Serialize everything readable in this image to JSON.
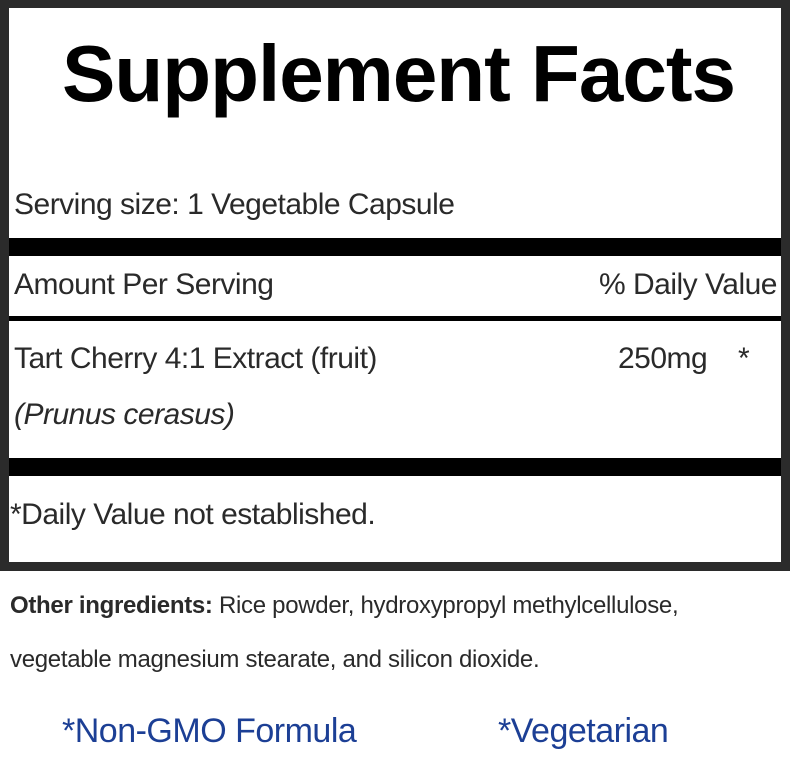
{
  "title": "Supplement Facts",
  "serving_size": "Serving size:  1 Vegetable Capsule",
  "header": {
    "amount": "Amount Per Serving",
    "daily_value": "% Daily Value"
  },
  "ingredients": [
    {
      "name": "Tart Cherry 4:1 Extract (fruit)",
      "latin": "(Prunus cerasus)",
      "amount": "250mg",
      "dv": "*"
    }
  ],
  "footnote": "*Daily Value not established.",
  "other_ingredients": {
    "label": "Other ingredients:",
    "text": " Rice powder, hydroxypropyl methylcellulose,",
    "text2": "vegetable magnesium stearate, and silicon dioxide."
  },
  "claims": [
    "*Non-GMO Formula",
    "*Vegetarian"
  ],
  "colors": {
    "claims": "#1c3f95",
    "border": "#2b2b2b"
  }
}
